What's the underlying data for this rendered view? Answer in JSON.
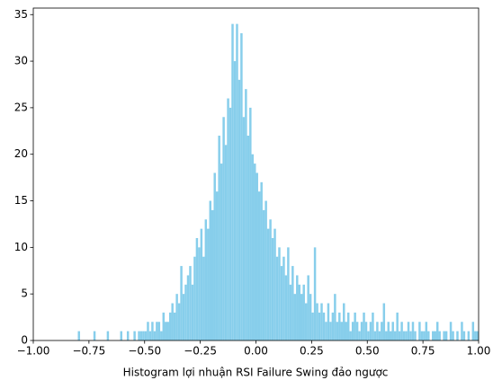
{
  "chart_data": {
    "type": "histogram",
    "xlabel": "Histogram lợi nhuận RSI Failure Swing đảo ngược",
    "color": "#87ceeb",
    "bins": [
      -1.0,
      -0.99,
      -0.98,
      -0.97,
      -0.96,
      -0.95,
      -0.94,
      -0.93,
      -0.92,
      -0.91,
      -0.9,
      -0.89,
      -0.88,
      -0.87,
      -0.86,
      -0.85,
      -0.84,
      -0.83,
      -0.82,
      -0.81,
      -0.8,
      -0.79,
      -0.78,
      -0.77,
      -0.76,
      -0.75,
      -0.74,
      -0.73,
      -0.72,
      -0.71,
      -0.7,
      -0.69,
      -0.68,
      -0.67,
      -0.66,
      -0.65,
      -0.64,
      -0.63,
      -0.62,
      -0.61,
      -0.6,
      -0.59,
      -0.58,
      -0.57,
      -0.56,
      -0.55,
      -0.54,
      -0.53,
      -0.52,
      -0.51,
      -0.5,
      -0.49,
      -0.48,
      -0.47,
      -0.46,
      -0.45,
      -0.44,
      -0.43,
      -0.42,
      -0.41,
      -0.4,
      -0.39,
      -0.38,
      -0.37,
      -0.36,
      -0.35,
      -0.34,
      -0.33,
      -0.32,
      -0.31,
      -0.3,
      -0.29,
      -0.28,
      -0.27,
      -0.26,
      -0.25,
      -0.24,
      -0.23,
      -0.22,
      -0.21,
      -0.2,
      -0.19,
      -0.18,
      -0.17,
      -0.16,
      -0.15,
      -0.14,
      -0.13,
      -0.12,
      -0.11,
      -0.1,
      -0.09,
      -0.08,
      -0.07,
      -0.06,
      -0.05,
      -0.04,
      -0.03,
      -0.02,
      -0.01,
      0.0,
      0.01,
      0.02,
      0.03,
      0.04,
      0.05,
      0.06,
      0.07,
      0.08,
      0.09,
      0.1,
      0.11,
      0.12,
      0.13,
      0.14,
      0.15,
      0.16,
      0.17,
      0.18,
      0.19,
      0.2,
      0.21,
      0.22,
      0.23,
      0.24,
      0.25,
      0.26,
      0.27,
      0.28,
      0.29,
      0.3,
      0.31,
      0.32,
      0.33,
      0.34,
      0.35,
      0.36,
      0.37,
      0.38,
      0.39,
      0.4,
      0.41,
      0.42,
      0.43,
      0.44,
      0.45,
      0.46,
      0.47,
      0.48,
      0.49,
      0.5,
      0.51,
      0.52,
      0.53,
      0.54,
      0.55,
      0.56,
      0.57,
      0.58,
      0.59,
      0.6,
      0.61,
      0.62,
      0.63,
      0.64,
      0.65,
      0.66,
      0.67,
      0.68,
      0.69,
      0.7,
      0.71,
      0.72,
      0.73,
      0.74,
      0.75,
      0.76,
      0.77,
      0.78,
      0.79,
      0.8,
      0.81,
      0.82,
      0.83,
      0.84,
      0.85,
      0.86,
      0.87,
      0.88,
      0.89,
      0.9,
      0.91,
      0.92,
      0.93,
      0.94,
      0.95,
      0.96,
      0.97,
      0.98,
      0.99,
      1.0
    ],
    "values": [
      0,
      0,
      0,
      0,
      0,
      0,
      0,
      0,
      0,
      0,
      0,
      0,
      0,
      0,
      0,
      0,
      0,
      0,
      0,
      0,
      1,
      0,
      0,
      0,
      0,
      0,
      0,
      1,
      0,
      0,
      0,
      0,
      0,
      1,
      0,
      0,
      0,
      0,
      0,
      1,
      0,
      0,
      1,
      0,
      0,
      1,
      0,
      1,
      1,
      1,
      1,
      2,
      1,
      2,
      1,
      2,
      2,
      1,
      3,
      2,
      2,
      3,
      4,
      3,
      5,
      4,
      8,
      5,
      6,
      7,
      8,
      6,
      9,
      11,
      10,
      12,
      9,
      13,
      12,
      15,
      14,
      18,
      16,
      22,
      19,
      24,
      21,
      26,
      25,
      34,
      30,
      34,
      28,
      33,
      24,
      27,
      22,
      25,
      20,
      19,
      18,
      16,
      17,
      14,
      15,
      12,
      13,
      11,
      12,
      9,
      10,
      8,
      9,
      7,
      10,
      6,
      8,
      5,
      7,
      6,
      5,
      6,
      4,
      7,
      5,
      3,
      10,
      4,
      3,
      4,
      3,
      2,
      4,
      2,
      3,
      5,
      2,
      3,
      2,
      4,
      2,
      3,
      1,
      2,
      3,
      2,
      1,
      2,
      3,
      2,
      1,
      2,
      3,
      1,
      2,
      1,
      2,
      4,
      1,
      2,
      1,
      2,
      1,
      3,
      1,
      2,
      1,
      1,
      2,
      1,
      2,
      1,
      0,
      2,
      1,
      1,
      2,
      1,
      0,
      1,
      1,
      2,
      1,
      0,
      1,
      1,
      0,
      2,
      1,
      0,
      1,
      0,
      2,
      1,
      0,
      1,
      0,
      2,
      1,
      1
    ],
    "xlim": [
      -1.0,
      1.0
    ],
    "xticks": [
      {
        "value": -1.0,
        "label": "−1.00"
      },
      {
        "value": -0.75,
        "label": "−0.75"
      },
      {
        "value": -0.5,
        "label": "−0.50"
      },
      {
        "value": -0.25,
        "label": "−0.25"
      },
      {
        "value": 0,
        "label": "0.00"
      },
      {
        "value": 0.25,
        "label": "0.25"
      },
      {
        "value": 0.5,
        "label": "0.50"
      },
      {
        "value": 0.75,
        "label": "0.75"
      },
      {
        "value": 1.0,
        "label": "1.00"
      }
    ],
    "ylim": [
      0,
      35.7
    ],
    "yticks": [
      0,
      5,
      10,
      15,
      20,
      25,
      30,
      35
    ]
  }
}
